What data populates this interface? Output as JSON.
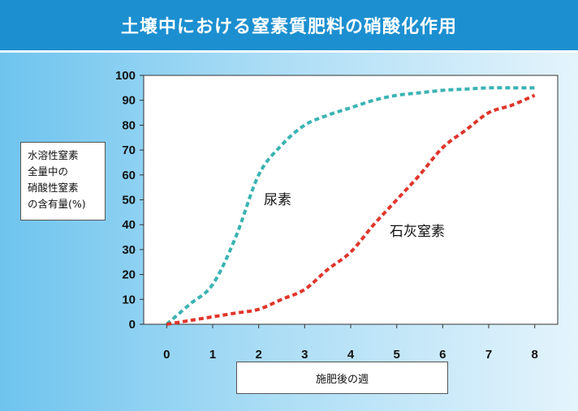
{
  "header": {
    "title": "土壌中における窒素質肥料の硝酸化作用"
  },
  "chart_data": {
    "type": "line",
    "ylabel": "水溶性窒素\n全量中の\n硝酸性窒素\nの含有量(%)",
    "xlabel": "施肥後の週",
    "x": [
      0,
      0.5,
      1,
      1.5,
      2,
      2.5,
      3,
      3.5,
      4,
      4.5,
      5,
      5.5,
      6,
      6.5,
      7,
      7.5,
      8
    ],
    "xticks": [
      0,
      1,
      2,
      3,
      4,
      5,
      6,
      7,
      8
    ],
    "yticks": [
      0,
      10,
      20,
      30,
      40,
      50,
      60,
      70,
      80,
      90,
      100
    ],
    "xlim": [
      -0.5,
      8.5
    ],
    "ylim": [
      0,
      100
    ],
    "grid": false,
    "series": [
      {
        "name": "尿素",
        "color": "#3bb3b3",
        "values": [
          0,
          8,
          16,
          35,
          60,
          72,
          80,
          84,
          87,
          90,
          92,
          93,
          94,
          94.5,
          95,
          95,
          95
        ]
      },
      {
        "name": "石灰窒素",
        "color": "#e0352b",
        "values": [
          0,
          1.5,
          3,
          4.5,
          6,
          10,
          14,
          22,
          29,
          40,
          50,
          60,
          71,
          78,
          85,
          88,
          92
        ]
      }
    ]
  }
}
